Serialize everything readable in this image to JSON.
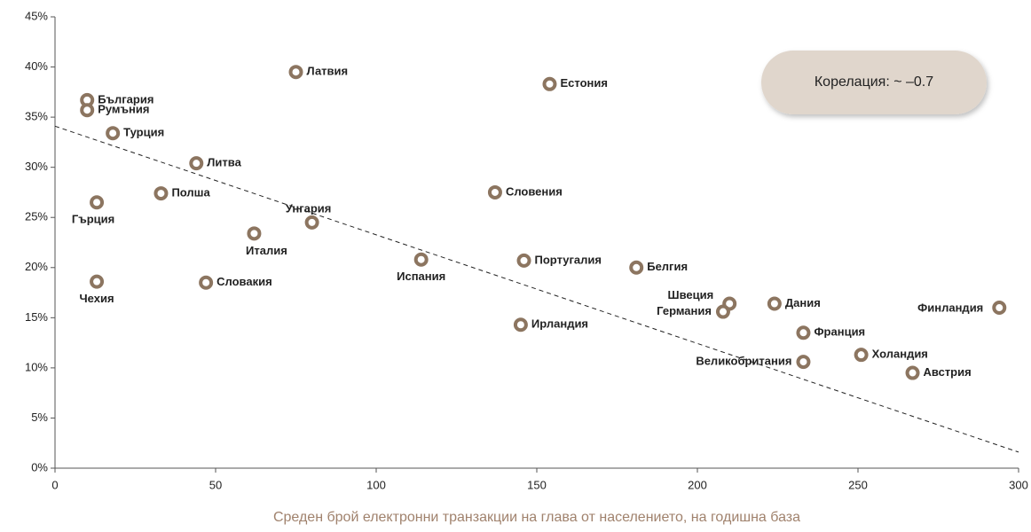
{
  "chart_data": {
    "type": "scatter",
    "categories": [
      "България",
      "Румъния",
      "Турция",
      "Литва",
      "Латвия",
      "Естония",
      "Гърция",
      "Полша",
      "Унгария",
      "Италия",
      "Словения",
      "Чехия",
      "Словакия",
      "Испания",
      "Португалия",
      "Белгия",
      "Ирландия",
      "Швеция",
      "Германия",
      "Дания",
      "Франция",
      "Великобритания",
      "Холандия",
      "Австрия",
      "Финландия"
    ],
    "x": [
      10,
      10,
      18,
      44,
      75,
      154,
      13,
      33,
      80,
      62,
      137,
      13,
      47,
      114,
      146,
      181,
      145,
      210,
      208,
      224,
      233,
      233,
      251,
      267,
      294
    ],
    "values": [
      36.7,
      35.7,
      33.4,
      30.4,
      39.5,
      38.3,
      26.5,
      27.4,
      24.5,
      23.4,
      27.5,
      18.6,
      18.5,
      20.8,
      20.7,
      20.0,
      14.3,
      16.4,
      15.6,
      16.4,
      13.5,
      10.6,
      11.3,
      9.5,
      16.0
    ],
    "color": "#8c7560",
    "xlabel": "Среден брой електронни транзакции на глава от населението, на годишна база",
    "annotation": "Корелация: ~ –0.7",
    "trend_line": {
      "x": [
        0,
        300
      ],
      "y": [
        34.1,
        1.6
      ]
    },
    "xlim": [
      0,
      300
    ],
    "xticks": [
      0,
      50,
      100,
      150,
      200,
      250,
      300
    ],
    "ylim": [
      0,
      45
    ],
    "yticks": [
      {
        "value": 0,
        "label": "0%"
      },
      {
        "value": 5,
        "label": "5%"
      },
      {
        "value": 10,
        "label": "10%"
      },
      {
        "value": 15,
        "label": "15%"
      },
      {
        "value": 20,
        "label": "20%"
      },
      {
        "value": 25,
        "label": "25%"
      },
      {
        "value": 30,
        "label": "30%"
      },
      {
        "value": 35,
        "label": "35%"
      },
      {
        "value": 40,
        "label": "40%"
      },
      {
        "value": 45,
        "label": "45%"
      }
    ],
    "grid": false
  }
}
